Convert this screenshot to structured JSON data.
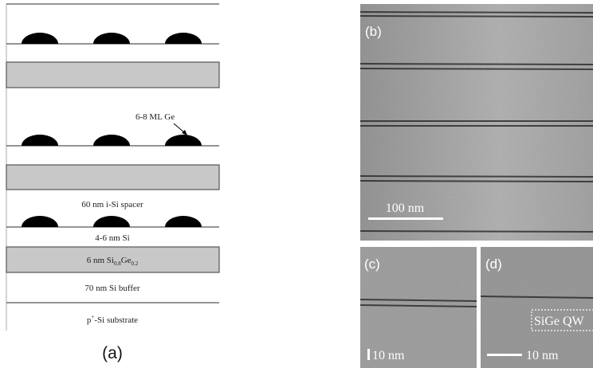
{
  "panel_a": {
    "ge_label": "6-8 ML Ge",
    "layers": [
      {
        "label": [
          "60 nm i-Si spacer"
        ]
      },
      {
        "label": [
          "4-6 nm Si"
        ]
      },
      {
        "label": [
          "6 nm Si",
          "0.8",
          "Ge",
          "0.2"
        ]
      },
      {
        "label": [
          "70 nm Si buffer"
        ]
      },
      {
        "label": [
          "p",
          "+",
          "-Si substrate"
        ]
      }
    ],
    "caption": "(a)"
  },
  "panel_b": {
    "label": "(b)",
    "scale_bar": "100 nm"
  },
  "panel_c": {
    "label": "(c)",
    "scale_bar": "10 nm"
  },
  "panel_d": {
    "label": "(d)",
    "scale_bar": "10 nm",
    "annotation": "SiGe QW"
  }
}
